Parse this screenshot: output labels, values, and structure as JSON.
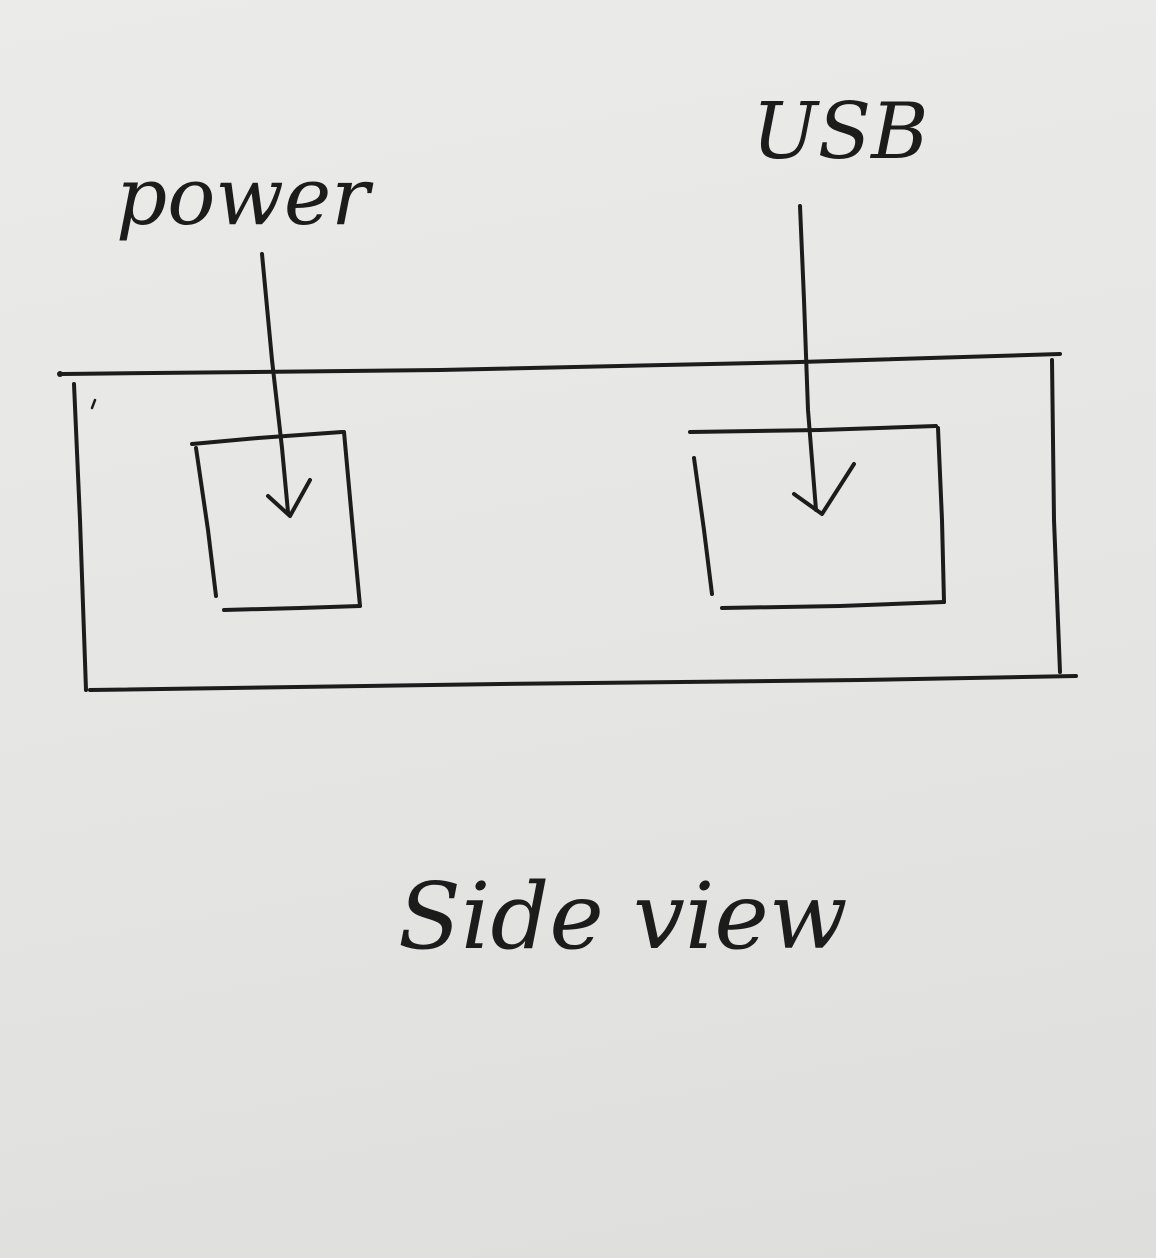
{
  "labels": {
    "power": "power",
    "usb": "USB",
    "caption": "Side view"
  },
  "colors": {
    "paper": "#e6e6e4",
    "ink": "#1c1c1c"
  }
}
